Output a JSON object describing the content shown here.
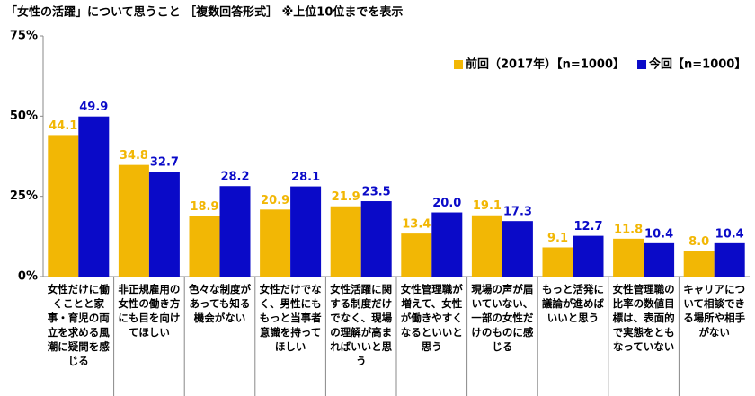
{
  "chart_data": {
    "type": "bar",
    "title": "「女性の活躍」について思うこと ［複数回答形式］ ※上位10位までを表示",
    "categories": [
      "女性だけに働くことと家事・育児の両立を求める風潮に疑問を感じる",
      "非正規雇用の女性の働き方にも目を向けてほしい",
      "色々な制度があっても知る機会がない",
      "女性だけでなく、男性にももっと当事者意識を持ってほしい",
      "女性活躍に関する制度だけでなく、現場の理解が高まればいいと思う",
      "女性管理職が増えて、女性が働きやすくなるといいと思う",
      "現場の声が届いていない、一部の女性だけのものに感じる",
      "もっと活発に議論が進めばいいと思う",
      "女性管理職の比率の数値目標は、表面的で実態をともなっていない",
      "キャリアについて相談できる場所や相手がない"
    ],
    "series": [
      {
        "name": "前回（2017年）【n=1000】",
        "color": "#f2b705",
        "values": [
          44.1,
          34.8,
          18.9,
          20.9,
          21.9,
          13.4,
          19.1,
          9.1,
          11.8,
          8.0
        ],
        "value_labels": [
          "44.1",
          "34.8",
          "18.9",
          "20.9",
          "21.9",
          "13.4",
          "19.1",
          "9.1",
          "11.8",
          "8.0"
        ]
      },
      {
        "name": "今回【n=1000】",
        "color": "#0a0ac8",
        "values": [
          49.9,
          32.7,
          28.2,
          28.1,
          23.5,
          20.0,
          17.3,
          12.7,
          10.4,
          10.4
        ],
        "value_labels": [
          "49.9",
          "32.7",
          "28.2",
          "28.1",
          "23.5",
          "20.0",
          "17.3",
          "12.7",
          "10.4",
          "10.4"
        ]
      }
    ],
    "ylim": [
      0,
      75
    ],
    "yticks": [
      {
        "value": 0,
        "label": "0%"
      },
      {
        "value": 25,
        "label": "25%"
      },
      {
        "value": 50,
        "label": "50%"
      },
      {
        "value": 75,
        "label": "75%"
      }
    ],
    "legend": "top-right"
  }
}
